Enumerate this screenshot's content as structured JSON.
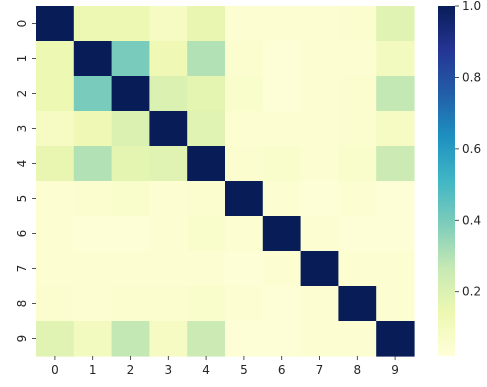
{
  "chart_data": {
    "type": "heatmap",
    "colormap": "YlGnBu",
    "x_labels": [
      "0",
      "1",
      "2",
      "3",
      "4",
      "5",
      "6",
      "7",
      "8",
      "9"
    ],
    "y_labels": [
      "0",
      "1",
      "2",
      "3",
      "4",
      "5",
      "6",
      "7",
      "8",
      "9"
    ],
    "values": [
      [
        1.0,
        0.14,
        0.14,
        0.09,
        0.16,
        0.04,
        0.04,
        0.04,
        0.05,
        0.18
      ],
      [
        0.14,
        1.0,
        0.4,
        0.13,
        0.3,
        0.05,
        0.03,
        0.04,
        0.04,
        0.1
      ],
      [
        0.14,
        0.4,
        1.0,
        0.2,
        0.17,
        0.06,
        0.03,
        0.04,
        0.05,
        0.27
      ],
      [
        0.09,
        0.13,
        0.2,
        1.0,
        0.18,
        0.04,
        0.04,
        0.04,
        0.05,
        0.09
      ],
      [
        0.16,
        0.3,
        0.17,
        0.18,
        1.0,
        0.05,
        0.06,
        0.04,
        0.06,
        0.25
      ],
      [
        0.04,
        0.05,
        0.06,
        0.04,
        0.05,
        1.0,
        0.04,
        0.03,
        0.04,
        0.03
      ],
      [
        0.04,
        0.03,
        0.03,
        0.04,
        0.06,
        0.04,
        1.0,
        0.04,
        0.03,
        0.03
      ],
      [
        0.04,
        0.04,
        0.04,
        0.04,
        0.04,
        0.03,
        0.04,
        1.0,
        0.04,
        0.04
      ],
      [
        0.05,
        0.04,
        0.05,
        0.05,
        0.06,
        0.04,
        0.03,
        0.04,
        1.0,
        0.04
      ],
      [
        0.18,
        0.1,
        0.27,
        0.09,
        0.25,
        0.03,
        0.03,
        0.04,
        0.04,
        1.0
      ]
    ],
    "colorbar": {
      "range": [
        0.02,
        1.0
      ],
      "ticks": [
        0.2,
        0.4,
        0.6,
        0.8,
        1.0
      ],
      "tick_labels": [
        "0.2",
        "0.4",
        "0.6",
        "0.8",
        "1.0"
      ]
    }
  }
}
